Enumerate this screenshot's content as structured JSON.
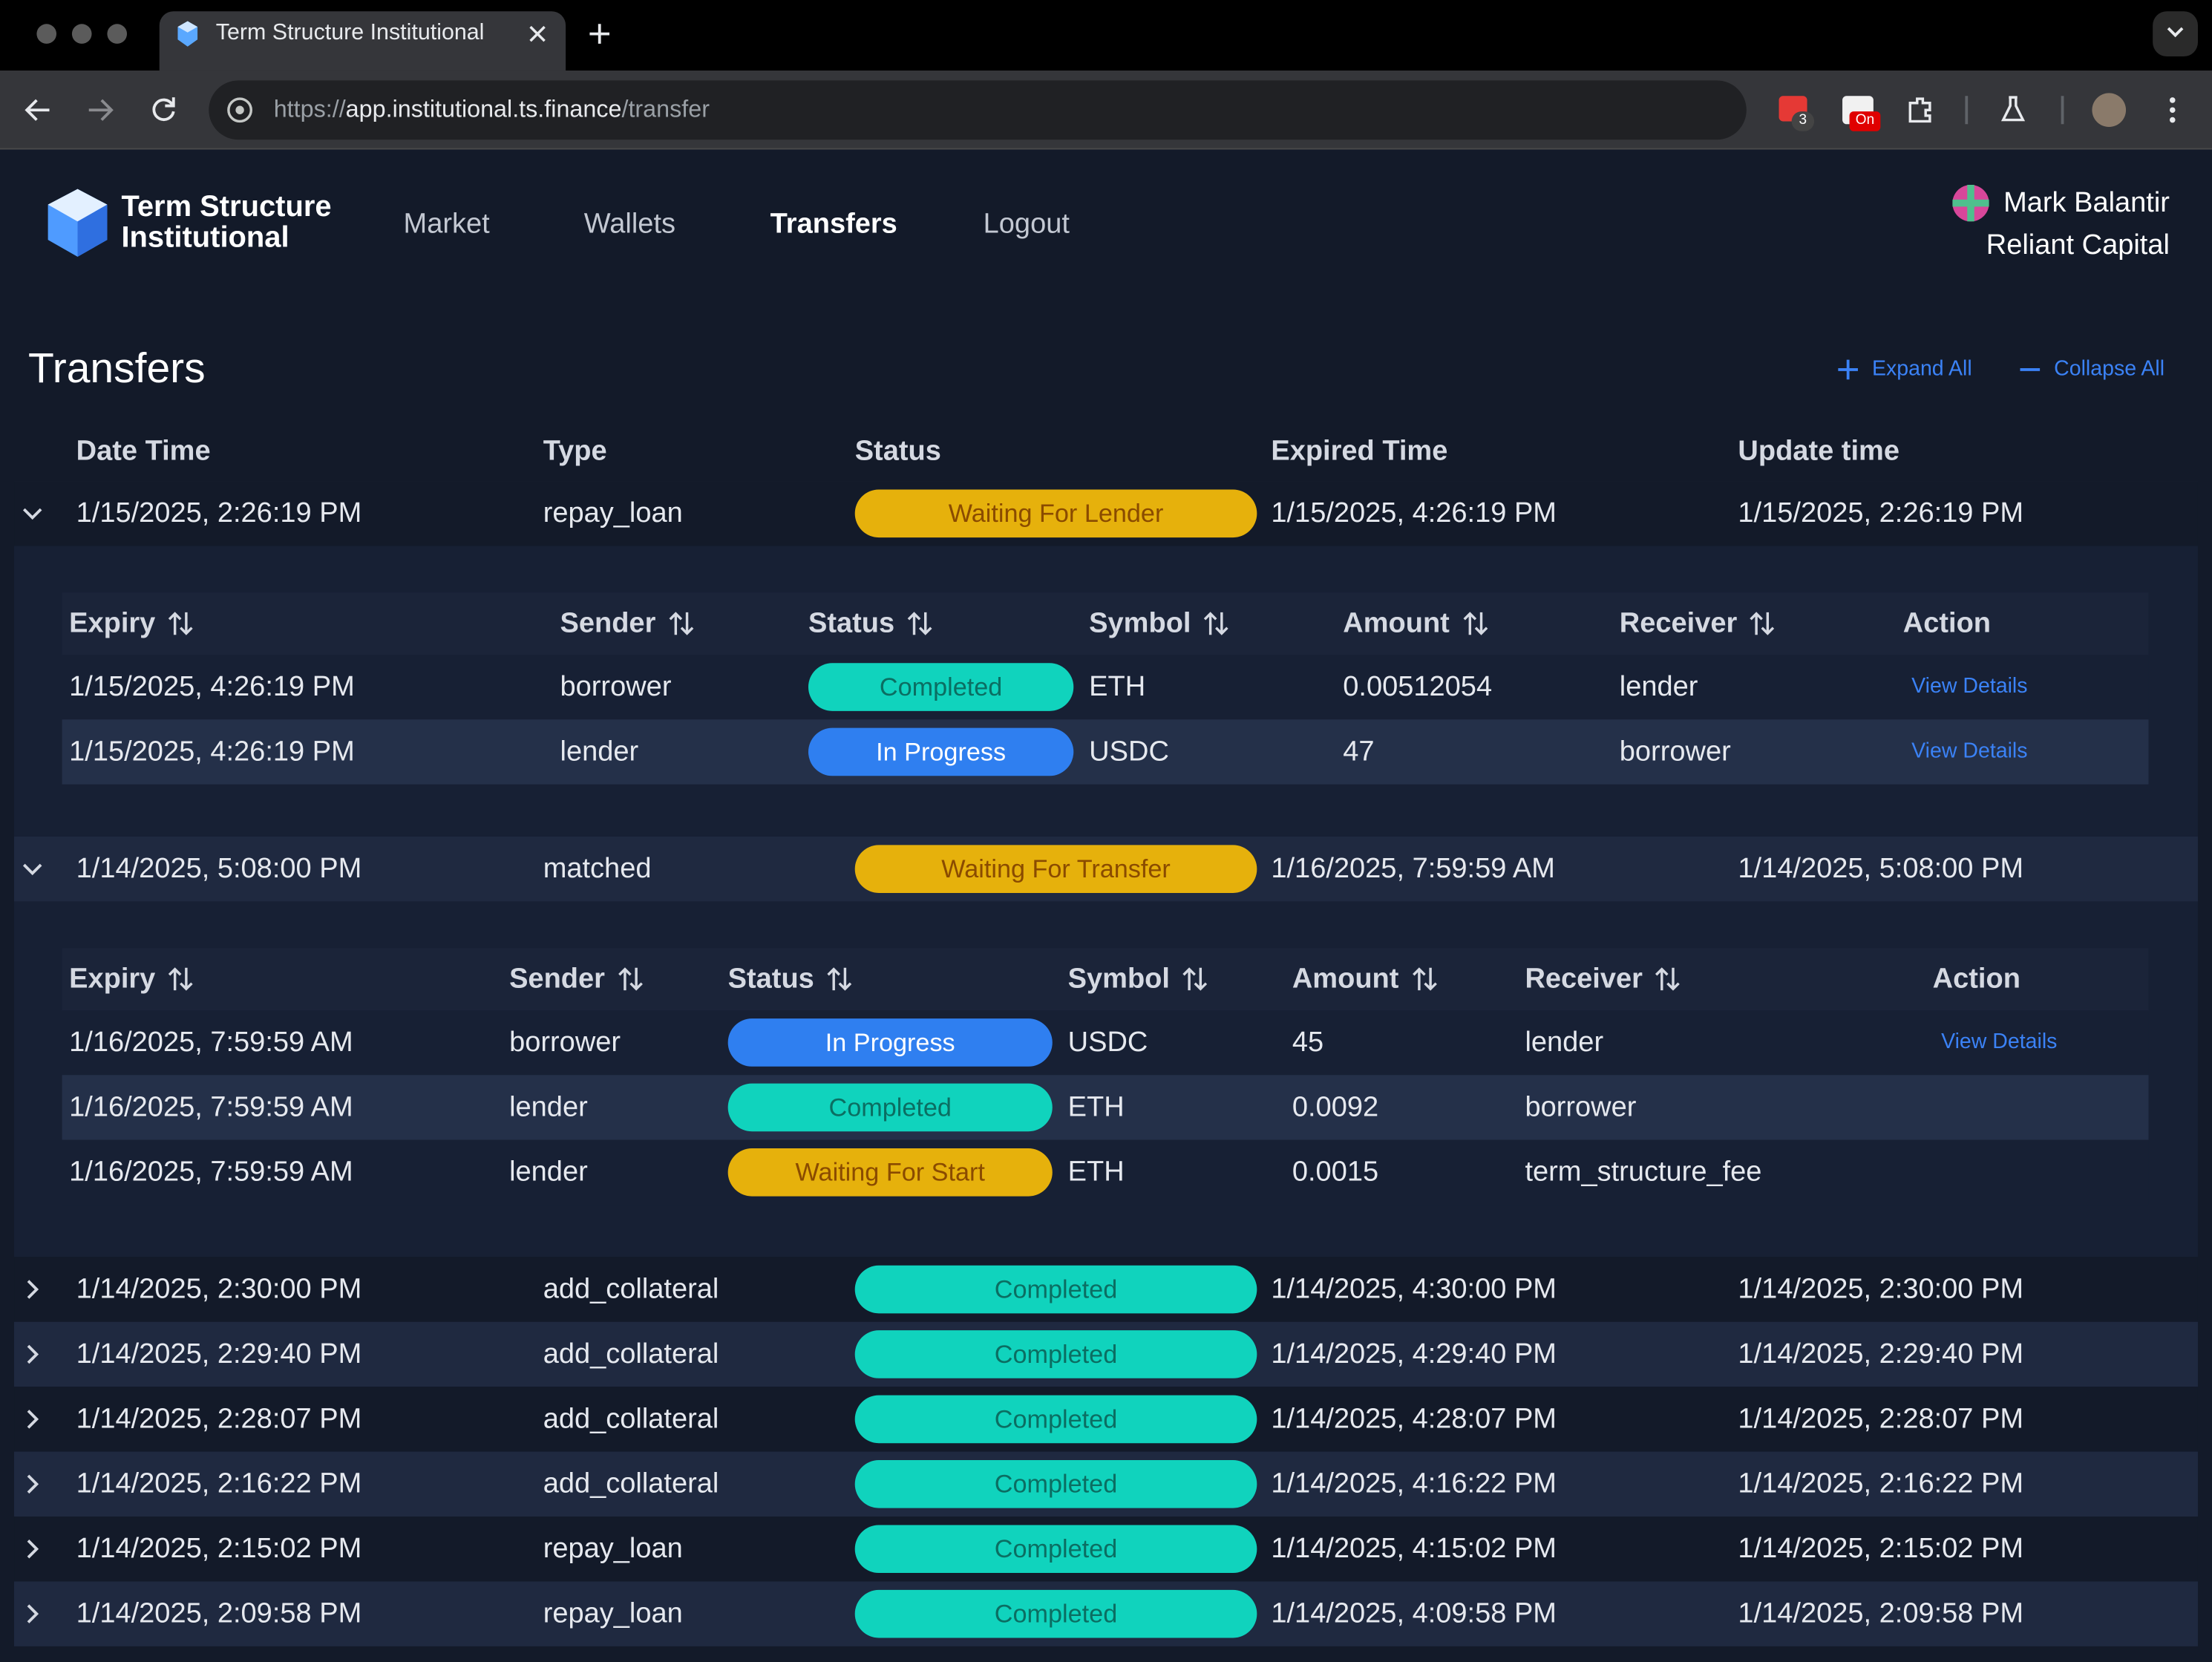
{
  "browser": {
    "tab_title": "Term Structure Institutional",
    "url_parts": [
      "https://",
      "app.institutional.ts.finance",
      "/transfer"
    ],
    "badges": [
      "3",
      "On"
    ]
  },
  "header": {
    "brand": [
      "Term Structure",
      "Institutional"
    ],
    "nav": [
      "Market",
      "Wallets",
      "Transfers",
      "Logout"
    ],
    "active_nav": 2,
    "user": {
      "name": "Mark Balantir",
      "org": "Reliant Capital"
    }
  },
  "page": {
    "title": "Transfers",
    "actions": [
      "Expand All",
      "Collapse All"
    ]
  },
  "table": {
    "columns": [
      "Date Time",
      "Type",
      "Status",
      "Expired Time",
      "Update time"
    ],
    "rows": [
      {
        "cells": [
          "1/15/2025, 2:26:19 PM",
          "repay_loan",
          "Waiting For Lender",
          "1/15/2025, 4:26:19 PM",
          "1/15/2025, 2:26:19 PM"
        ],
        "status_color": "#e6b10c",
        "expanded": true,
        "sub": {
          "columns": [
            "Expiry",
            "Sender",
            "Status",
            "Symbol",
            "Amount",
            "Receiver",
            "Action"
          ],
          "rows": [
            {
              "cells": [
                "1/15/2025, 4:26:19 PM",
                "borrower",
                "Completed",
                "ETH",
                "0.00512054",
                "lender"
              ],
              "status_color": "#10d3bd",
              "action": "View Details"
            },
            {
              "cells": [
                "1/15/2025, 4:26:19 PM",
                "lender",
                "In Progress",
                "USDC",
                "47",
                "borrower"
              ],
              "status_color": "#2f7ff0",
              "action": "View Details"
            }
          ]
        }
      },
      {
        "cells": [
          "1/14/2025, 5:08:00 PM",
          "matched",
          "Waiting For Transfer",
          "1/16/2025, 7:59:59 AM",
          "1/14/2025, 5:08:00 PM"
        ],
        "status_color": "#e6b10c",
        "expanded": true,
        "sub": {
          "columns": [
            "Expiry",
            "Sender",
            "Status",
            "Symbol",
            "Amount",
            "Receiver",
            "Action"
          ],
          "rows": [
            {
              "cells": [
                "1/16/2025, 7:59:59 AM",
                "borrower",
                "In Progress",
                "USDC",
                "45",
                "lender"
              ],
              "status_color": "#2f7ff0",
              "action": "View Details"
            },
            {
              "cells": [
                "1/16/2025, 7:59:59 AM",
                "lender",
                "Completed",
                "ETH",
                "0.0092",
                "borrower"
              ],
              "status_color": "#10d3bd"
            },
            {
              "cells": [
                "1/16/2025, 7:59:59 AM",
                "lender",
                "Waiting For Start",
                "ETH",
                "0.0015",
                "term_structure_fee"
              ],
              "status_color": "#e6b10c"
            }
          ]
        }
      },
      {
        "cells": [
          "1/14/2025, 2:30:00 PM",
          "add_collateral",
          "Completed",
          "1/14/2025, 4:30:00 PM",
          "1/14/2025, 2:30:00 PM"
        ],
        "status_color": "#10d3bd",
        "expanded": false
      },
      {
        "cells": [
          "1/14/2025, 2:29:40 PM",
          "add_collateral",
          "Completed",
          "1/14/2025, 4:29:40 PM",
          "1/14/2025, 2:29:40 PM"
        ],
        "status_color": "#10d3bd",
        "expanded": false
      },
      {
        "cells": [
          "1/14/2025, 2:28:07 PM",
          "add_collateral",
          "Completed",
          "1/14/2025, 4:28:07 PM",
          "1/14/2025, 2:28:07 PM"
        ],
        "status_color": "#10d3bd",
        "expanded": false
      },
      {
        "cells": [
          "1/14/2025, 2:16:22 PM",
          "add_collateral",
          "Completed",
          "1/14/2025, 4:16:22 PM",
          "1/14/2025, 2:16:22 PM"
        ],
        "status_color": "#10d3bd",
        "expanded": false
      },
      {
        "cells": [
          "1/14/2025, 2:15:02 PM",
          "repay_loan",
          "Completed",
          "1/14/2025, 4:15:02 PM",
          "1/14/2025, 2:15:02 PM"
        ],
        "status_color": "#10d3bd",
        "expanded": false
      },
      {
        "cells": [
          "1/14/2025, 2:09:58 PM",
          "repay_loan",
          "Completed",
          "1/14/2025, 4:09:58 PM",
          "1/14/2025, 2:09:58 PM"
        ],
        "status_color": "#10d3bd",
        "expanded": false
      }
    ]
  }
}
